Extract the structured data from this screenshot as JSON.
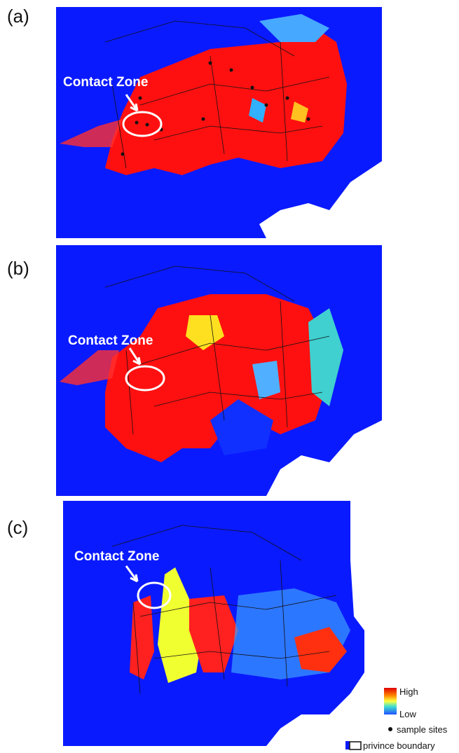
{
  "panels": [
    {
      "label": "(a)",
      "annotation": "Contact Zone"
    },
    {
      "label": "(b)",
      "annotation": "Contact Zone"
    },
    {
      "label": "(c)",
      "annotation": "Contact Zone"
    }
  ],
  "legend": {
    "high": "High",
    "low": "Low",
    "sample_sites": "sample sites",
    "boundary": "privince boundary"
  }
}
